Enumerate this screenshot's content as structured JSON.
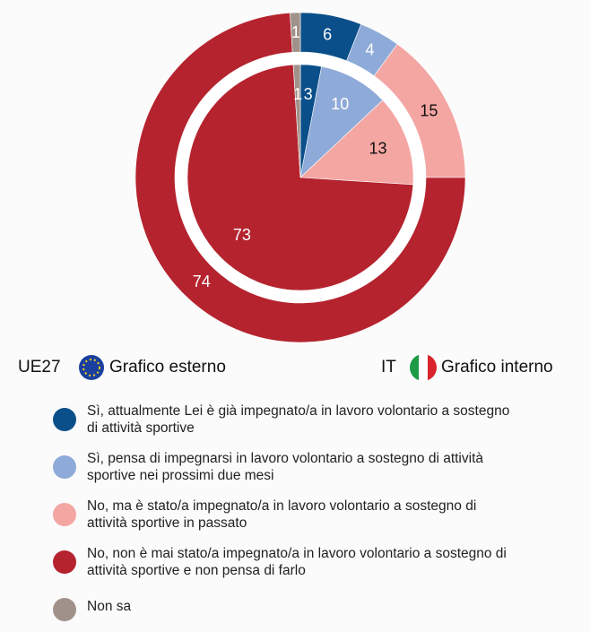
{
  "chart_data": {
    "type": "nested-pie",
    "categories": [
      "Sì, attualmente Lei è già impegnato/a in lavoro volontario a sostegno di attività sportive",
      "Sì, pensa di impegnarsi in lavoro volontario a sostegno di attività sportive nei prossimi due mesi",
      "No, ma è stato/a impegnato/a in lavoro volontario a sostegno di attività sportive in passato",
      "No, non è mai stato/a impegnato/a in lavoro volontario a sostegno di attività sportive e non pensa di farlo",
      "Non sa"
    ],
    "colors": [
      "#0b4f8a",
      "#8eaad8",
      "#f4a6a3",
      "#b5232e",
      "#a0928a"
    ],
    "series": [
      {
        "name": "UE27",
        "ring": "Grafico esterno",
        "values": [
          6,
          4,
          15,
          74,
          1
        ]
      },
      {
        "name": "IT",
        "ring": "Grafico interno",
        "values": [
          3,
          10,
          13,
          73,
          1
        ]
      }
    ]
  }
}
